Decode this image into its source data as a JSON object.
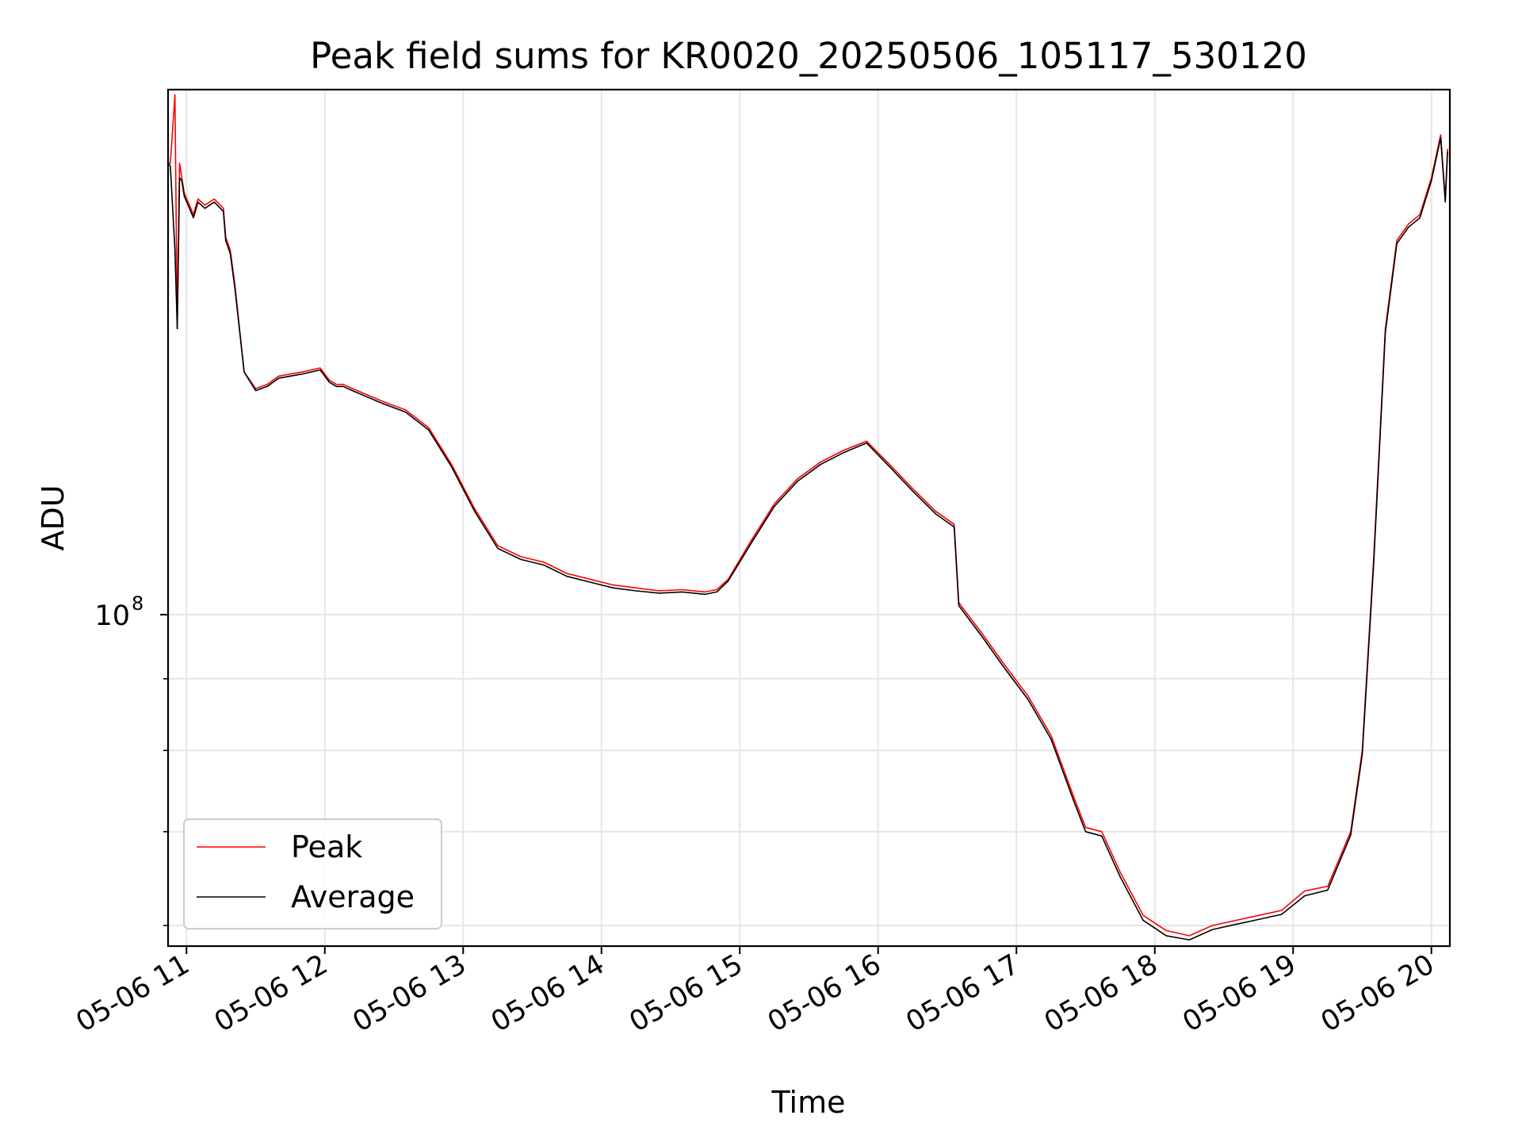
{
  "chart_data": {
    "type": "line",
    "title": "Peak field sums for KR0020_20250506_105117_530120",
    "xlabel": "Time",
    "ylabel": "ADU",
    "y_scale": "log",
    "grid": true,
    "legend_position": "lower-left",
    "xlim": [
      "2025-05-06 10:52",
      "2025-05-06 20:08"
    ],
    "ylim": [
      58000000,
      237000000
    ],
    "x_ticks": [
      "05-06 11",
      "05-06 12",
      "05-06 13",
      "05-06 14",
      "05-06 15",
      "05-06 16",
      "05-06 17",
      "05-06 18",
      "05-06 19",
      "05-06 20"
    ],
    "y_major_ticks": [
      {
        "value": 100000000,
        "label_base": "10",
        "label_exp": "8"
      }
    ],
    "y_minor_ticks": [
      60000000,
      70000000,
      80000000,
      90000000
    ],
    "series": [
      {
        "name": "Peak",
        "color": "#ff0000",
        "x": [
          "2025-05-06 10:52",
          "2025-05-06 10:53",
          "2025-05-06 10:55",
          "2025-05-06 10:56",
          "2025-05-06 10:57",
          "2025-05-06 10:58",
          "2025-05-06 10:59",
          "2025-05-06 11:03",
          "2025-05-06 11:05",
          "2025-05-06 11:08",
          "2025-05-06 11:12",
          "2025-05-06 11:16",
          "2025-05-06 11:17",
          "2025-05-06 11:19",
          "2025-05-06 11:21",
          "2025-05-06 11:25",
          "2025-05-06 11:30",
          "2025-05-06 11:35",
          "2025-05-06 11:40",
          "2025-05-06 11:50",
          "2025-05-06 11:58",
          "2025-05-06 12:02",
          "2025-05-06 12:05",
          "2025-05-06 12:08",
          "2025-05-06 12:12",
          "2025-05-06 12:25",
          "2025-05-06 12:35",
          "2025-05-06 12:45",
          "2025-05-06 12:55",
          "2025-05-06 13:05",
          "2025-05-06 13:15",
          "2025-05-06 13:25",
          "2025-05-06 13:35",
          "2025-05-06 13:45",
          "2025-05-06 13:55",
          "2025-05-06 14:05",
          "2025-05-06 14:15",
          "2025-05-06 14:25",
          "2025-05-06 14:35",
          "2025-05-06 14:45",
          "2025-05-06 14:50",
          "2025-05-06 14:55",
          "2025-05-06 15:05",
          "2025-05-06 15:15",
          "2025-05-06 15:25",
          "2025-05-06 15:35",
          "2025-05-06 15:45",
          "2025-05-06 15:55",
          "2025-05-06 16:05",
          "2025-05-06 16:15",
          "2025-05-06 16:25",
          "2025-05-06 16:33",
          "2025-05-06 16:35",
          "2025-05-06 16:45",
          "2025-05-06 16:55",
          "2025-05-06 17:05",
          "2025-05-06 17:15",
          "2025-05-06 17:25",
          "2025-05-06 17:30",
          "2025-05-06 17:37",
          "2025-05-06 17:45",
          "2025-05-06 17:55",
          "2025-05-06 18:05",
          "2025-05-06 18:15",
          "2025-05-06 18:25",
          "2025-05-06 18:35",
          "2025-05-06 18:45",
          "2025-05-06 18:55",
          "2025-05-06 19:05",
          "2025-05-06 19:15",
          "2025-05-06 19:25",
          "2025-05-06 19:30",
          "2025-05-06 19:35",
          "2025-05-06 19:40",
          "2025-05-06 19:45",
          "2025-05-06 19:50",
          "2025-05-06 19:55",
          "2025-05-06 20:00",
          "2025-05-06 20:04",
          "2025-05-06 20:06",
          "2025-05-06 20:07"
        ],
        "y": [
          210000000,
          210000000,
          235000000,
          160000000,
          210000000,
          205000000,
          200000000,
          193000000,
          198000000,
          196000000,
          198000000,
          195000000,
          186000000,
          182000000,
          172000000,
          149000000,
          145000000,
          146000000,
          148000000,
          149000000,
          150000000,
          147000000,
          146000000,
          146000000,
          145000000,
          142000000,
          140000000,
          136000000,
          128000000,
          119000000,
          112000000,
          110000000,
          109000000,
          107000000,
          106000000,
          105000000,
          104500000,
          104000000,
          104200000,
          103800000,
          104200000,
          106000000,
          113000000,
          120000000,
          125000000,
          128500000,
          131000000,
          133000000,
          128000000,
          123000000,
          118500000,
          116000000,
          102000000,
          97000000,
          92000000,
          87500000,
          82000000,
          74000000,
          70500000,
          70000000,
          65500000,
          61000000,
          59500000,
          59000000,
          60000000,
          60500000,
          61000000,
          61500000,
          63500000,
          64000000,
          70000000,
          80000000,
          110000000,
          160000000,
          185000000,
          190000000,
          193000000,
          205000000,
          220000000,
          198000000,
          215000000
        ]
      },
      {
        "name": "Average",
        "color": "#000000",
        "x": [
          "2025-05-06 10:52",
          "2025-05-06 10:53",
          "2025-05-06 10:55",
          "2025-05-06 10:56",
          "2025-05-06 10:57",
          "2025-05-06 10:58",
          "2025-05-06 10:59",
          "2025-05-06 11:03",
          "2025-05-06 11:05",
          "2025-05-06 11:08",
          "2025-05-06 11:12",
          "2025-05-06 11:16",
          "2025-05-06 11:17",
          "2025-05-06 11:19",
          "2025-05-06 11:21",
          "2025-05-06 11:25",
          "2025-05-06 11:30",
          "2025-05-06 11:35",
          "2025-05-06 11:40",
          "2025-05-06 11:50",
          "2025-05-06 11:58",
          "2025-05-06 12:02",
          "2025-05-06 12:05",
          "2025-05-06 12:08",
          "2025-05-06 12:12",
          "2025-05-06 12:25",
          "2025-05-06 12:35",
          "2025-05-06 12:45",
          "2025-05-06 12:55",
          "2025-05-06 13:05",
          "2025-05-06 13:15",
          "2025-05-06 13:25",
          "2025-05-06 13:35",
          "2025-05-06 13:45",
          "2025-05-06 13:55",
          "2025-05-06 14:05",
          "2025-05-06 14:15",
          "2025-05-06 14:25",
          "2025-05-06 14:35",
          "2025-05-06 14:45",
          "2025-05-06 14:50",
          "2025-05-06 14:55",
          "2025-05-06 15:05",
          "2025-05-06 15:15",
          "2025-05-06 15:25",
          "2025-05-06 15:35",
          "2025-05-06 15:45",
          "2025-05-06 15:55",
          "2025-05-06 16:05",
          "2025-05-06 16:15",
          "2025-05-06 16:25",
          "2025-05-06 16:33",
          "2025-05-06 16:35",
          "2025-05-06 16:45",
          "2025-05-06 16:55",
          "2025-05-06 17:05",
          "2025-05-06 17:15",
          "2025-05-06 17:25",
          "2025-05-06 17:30",
          "2025-05-06 17:37",
          "2025-05-06 17:45",
          "2025-05-06 17:55",
          "2025-05-06 18:05",
          "2025-05-06 18:15",
          "2025-05-06 18:25",
          "2025-05-06 18:35",
          "2025-05-06 18:45",
          "2025-05-06 18:55",
          "2025-05-06 19:05",
          "2025-05-06 19:15",
          "2025-05-06 19:25",
          "2025-05-06 19:30",
          "2025-05-06 19:35",
          "2025-05-06 19:40",
          "2025-05-06 19:45",
          "2025-05-06 19:50",
          "2025-05-06 19:55",
          "2025-05-06 20:00",
          "2025-05-06 20:04",
          "2025-05-06 20:06",
          "2025-05-06 20:07"
        ],
        "y": [
          210000000,
          209000000,
          182000000,
          160000000,
          205000000,
          204000000,
          199000000,
          192000000,
          197000000,
          195000000,
          197000000,
          194000000,
          185000000,
          181000000,
          171000000,
          149000000,
          144500000,
          145500000,
          147500000,
          148500000,
          149500000,
          146500000,
          145500000,
          145500000,
          144500000,
          141500000,
          139500000,
          135500000,
          127500000,
          118500000,
          111500000,
          109500000,
          108500000,
          106500000,
          105500000,
          104500000,
          104000000,
          103600000,
          103800000,
          103400000,
          103800000,
          105700000,
          112500000,
          119500000,
          124500000,
          128000000,
          130500000,
          132600000,
          127500000,
          122500000,
          118000000,
          115500000,
          101500000,
          96500000,
          91500000,
          87000000,
          81500000,
          73500000,
          70000000,
          69500000,
          65000000,
          60500000,
          59000000,
          58600000,
          59600000,
          60100000,
          60600000,
          61100000,
          63000000,
          63600000,
          69600000,
          79500000,
          109000000,
          159000000,
          184000000,
          189000000,
          192000000,
          204000000,
          219000000,
          197000000,
          214000000
        ]
      }
    ]
  }
}
